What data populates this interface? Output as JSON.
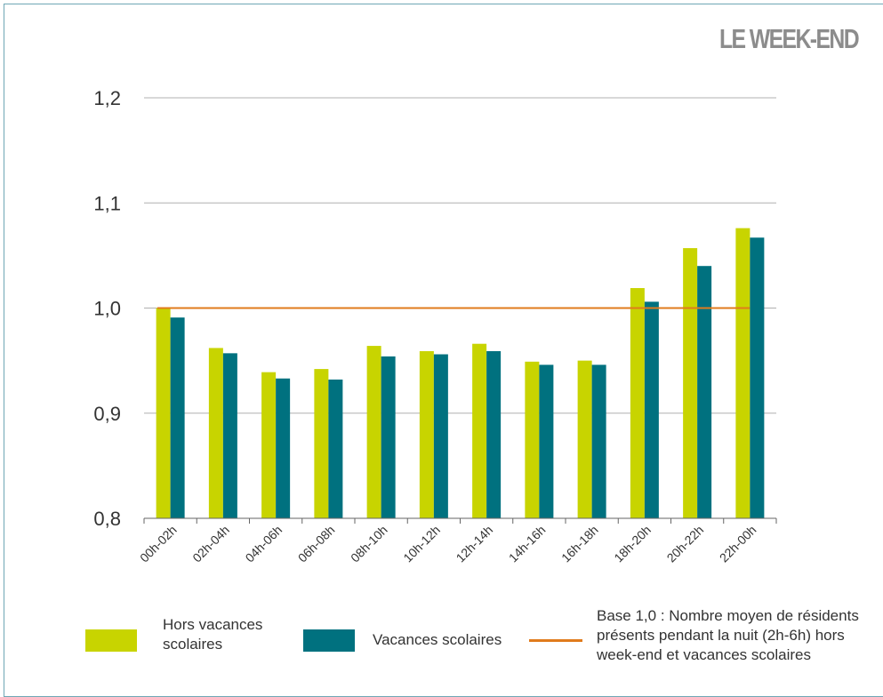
{
  "corner_title": "LE WEEK-END",
  "legend": {
    "hors": "Hors vacances scolaires",
    "vacances": "Vacances scolaires",
    "base": "Base 1,0 : Nombre moyen de résidents présents pendant la nuit (2h-6h) hors week-end et vacances scolaires"
  },
  "colors": {
    "hors": "#c8d400",
    "vacances": "#00717f",
    "baseline": "#e07b1c",
    "grid": "#b0b0b0"
  },
  "chart_data": {
    "type": "bar",
    "categories": [
      "00h-02h",
      "02h-04h",
      "04h-06h",
      "06h-08h",
      "08h-10h",
      "10h-12h",
      "12h-14h",
      "14h-16h",
      "16h-18h",
      "18h-20h",
      "20h-22h",
      "22h-00h"
    ],
    "series": [
      {
        "name": "Hors vacances scolaires",
        "values": [
          1.0,
          0.962,
          0.939,
          0.942,
          0.964,
          0.959,
          0.966,
          0.949,
          0.95,
          1.019,
          1.057,
          1.076
        ]
      },
      {
        "name": "Vacances scolaires",
        "values": [
          0.991,
          0.957,
          0.933,
          0.932,
          0.954,
          0.956,
          0.959,
          0.946,
          0.946,
          1.006,
          1.04,
          1.067
        ]
      }
    ],
    "reference_line": {
      "name": "Base 1,0 : Nombre moyen de résidents présents pendant la nuit (2h-6h) hors week-end et vacances scolaires",
      "value": 1.0
    },
    "ylim": [
      0.8,
      1.2
    ],
    "yticks": [
      0.8,
      0.9,
      1.0,
      1.1,
      1.2
    ],
    "ytick_labels": [
      "0,8",
      "0,9",
      "1,0",
      "1,1",
      "1,2"
    ],
    "grid": true,
    "legend_position": "bottom"
  }
}
